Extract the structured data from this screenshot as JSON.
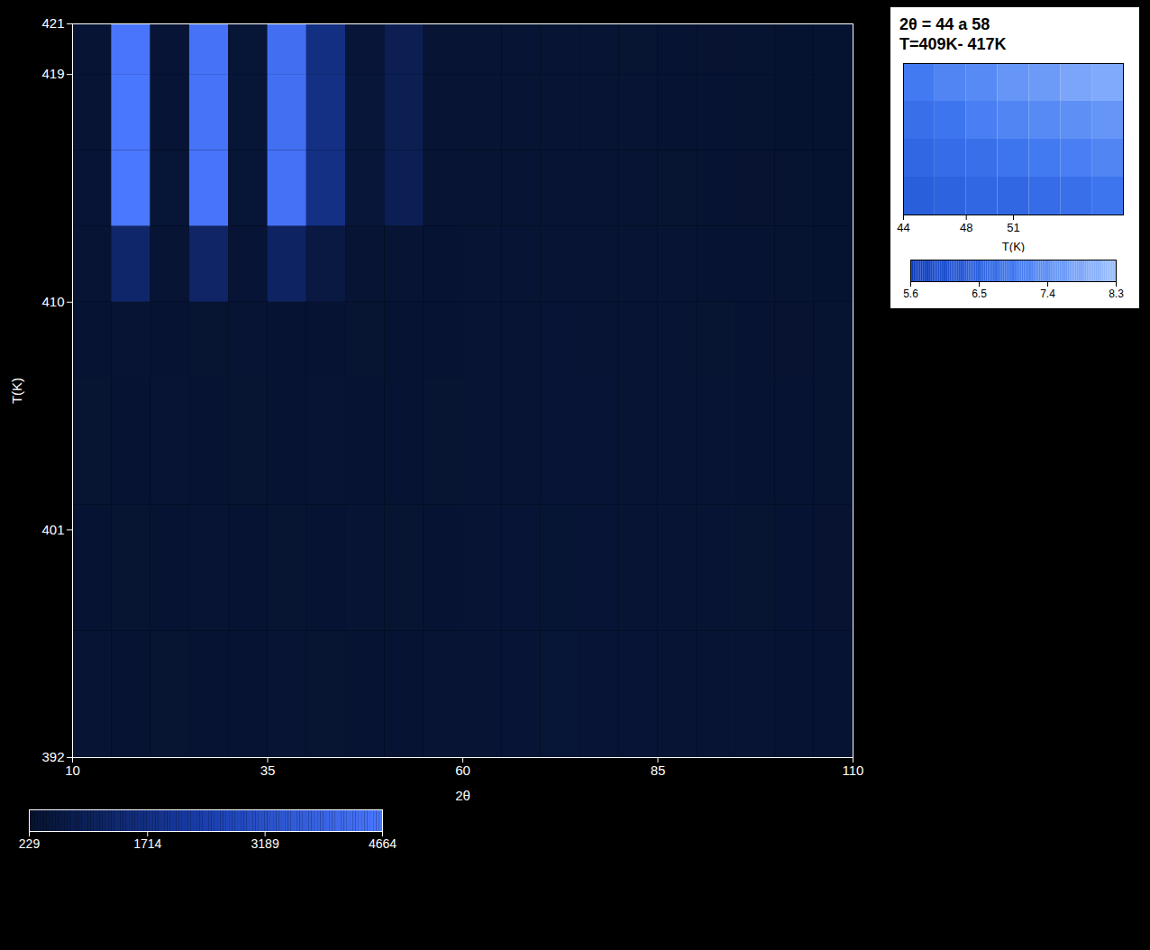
{
  "chart_data": [
    {
      "type": "heatmap",
      "xlabel": "2θ",
      "ylabel": "T(K)",
      "xlim": [
        10,
        110
      ],
      "xticks": [
        10,
        35,
        60,
        85,
        110
      ],
      "ylim": [
        392,
        421
      ],
      "yticks": [
        392,
        401,
        410,
        419,
        421
      ],
      "x_edges": [
        10,
        15,
        20,
        25,
        30,
        35,
        40,
        45,
        50,
        55,
        60,
        65,
        70,
        75,
        80,
        85,
        90,
        95,
        100,
        105,
        110
      ],
      "y_edges": [
        392,
        397,
        402,
        407,
        410,
        413,
        416,
        419,
        421
      ],
      "cells": [
        [
          310,
          295,
          305,
          290,
          300,
          315,
          305,
          295,
          300,
          310,
          330,
          345,
          360,
          350,
          340,
          330,
          320,
          310,
          300,
          290
        ],
        [
          300,
          305,
          295,
          310,
          295,
          305,
          300,
          310,
          305,
          300,
          325,
          340,
          355,
          345,
          335,
          325,
          315,
          305,
          295,
          285
        ],
        [
          305,
          300,
          310,
          295,
          305,
          300,
          310,
          300,
          295,
          305,
          320,
          335,
          350,
          340,
          330,
          320,
          310,
          300,
          290,
          280
        ],
        [
          295,
          310,
          300,
          305,
          310,
          295,
          300,
          305,
          300,
          295,
          315,
          330,
          345,
          335,
          325,
          315,
          305,
          295,
          285,
          275
        ],
        [
          320,
          1250,
          330,
          1180,
          340,
          1120,
          560,
          320,
          310,
          300,
          310,
          325,
          335,
          330,
          320,
          310,
          300,
          290,
          280,
          270
        ],
        [
          340,
          4664,
          360,
          4520,
          380,
          4380,
          1714,
          420,
          880,
          330,
          320,
          320,
          330,
          325,
          315,
          305,
          295,
          285,
          275,
          265
        ],
        [
          335,
          4610,
          350,
          4480,
          370,
          4340,
          1690,
          410,
          860,
          320,
          315,
          315,
          325,
          320,
          310,
          300,
          290,
          280,
          270,
          260
        ],
        [
          330,
          4560,
          345,
          4430,
          365,
          4300,
          1650,
          400,
          840,
          315,
          310,
          310,
          320,
          315,
          305,
          295,
          285,
          275,
          265,
          255
        ]
      ],
      "color_bar": {
        "range": [
          229,
          4664
        ],
        "ticks": [
          229,
          1714,
          3189,
          4664
        ]
      }
    },
    {
      "type": "heatmap",
      "title": "2θ = 44 a 58",
      "subtitle": "T=409K- 417K",
      "xlabel": "T(K)",
      "xlim": [
        44,
        58
      ],
      "xticks": [
        44,
        48,
        51
      ],
      "ylim": [
        409,
        417
      ],
      "tick_labels": "x",
      "x_edges": [
        44,
        46,
        48,
        50,
        52,
        54,
        56,
        58
      ],
      "y_edges": [
        409,
        411,
        413,
        415,
        417
      ],
      "cells": [
        [
          6.4,
          6.5,
          6.6,
          6.6,
          6.7,
          6.8,
          6.9
        ],
        [
          6.6,
          6.7,
          6.8,
          6.9,
          7.0,
          7.1,
          7.2
        ],
        [
          6.8,
          6.9,
          7.1,
          7.2,
          7.3,
          7.4,
          7.5
        ],
        [
          7.0,
          7.2,
          7.3,
          7.5,
          7.6,
          7.8,
          7.9
        ]
      ],
      "color_bar": {
        "range": [
          5.6,
          8.3
        ],
        "ticks": [
          5.6,
          6.5,
          7.4,
          8.3
        ]
      }
    }
  ]
}
